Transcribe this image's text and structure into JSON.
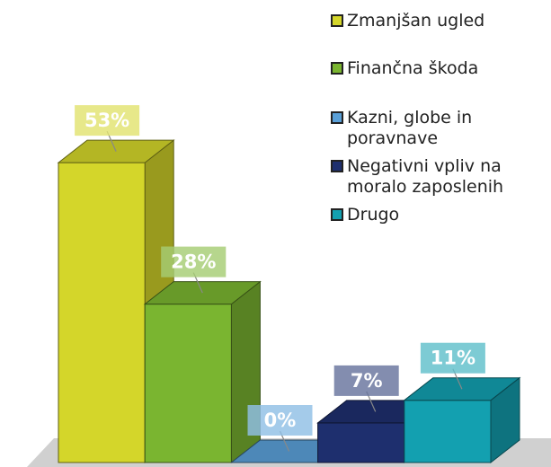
{
  "chart_data": {
    "type": "bar3d",
    "categories": [
      "Zmanjšan ugled",
      "Finančna škoda",
      "Kazni, globe in poravnave",
      "Negativni vpliv na moralo zaposlenih",
      "Drugo"
    ],
    "values": [
      53,
      28,
      0,
      7,
      11
    ],
    "value_labels": [
      "53%",
      "28%",
      "0%",
      "7%",
      "11%"
    ],
    "colors": [
      "#d4d62a",
      "#7ab530",
      "#5aa0d8",
      "#1e2f6e",
      "#13a0b0"
    ],
    "legend": "top-right"
  }
}
